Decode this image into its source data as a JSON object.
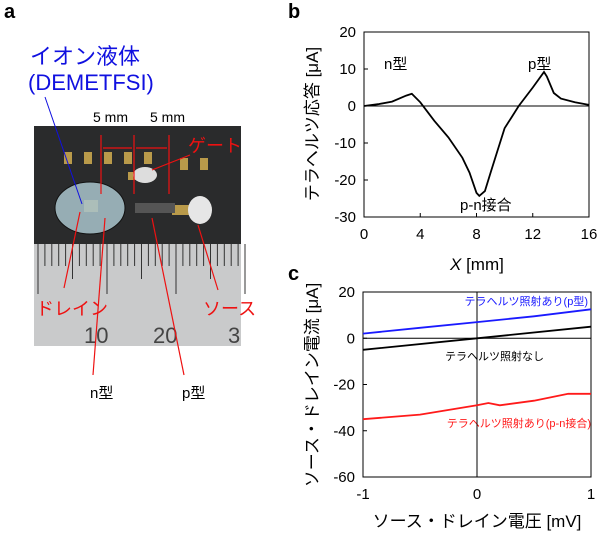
{
  "panels": {
    "a": "a",
    "b": "b",
    "c": "c"
  },
  "photo": {
    "ionic_liquid": "イオン液体",
    "ionic_liquid_name": "(DEMETFSI)",
    "dim1": "5 mm",
    "dim2": "5 mm",
    "gate": "ゲート",
    "drain": "ドレイン",
    "source": "ソース",
    "n_type": "n型",
    "p_type": "p型",
    "ruler_10": "10",
    "ruler_20": "20",
    "ruler_30": "3",
    "colors": {
      "blue": "#1010e0",
      "red": "#ee1111"
    }
  },
  "chart_data": [
    {
      "type": "line",
      "xlabel_italic": "X",
      "xlabel": "[mm]",
      "ylabel": "テラヘルツ応答 [μA]",
      "xlim": [
        0,
        16
      ],
      "ylim": [
        -30,
        20
      ],
      "xticks": [
        "0",
        "4",
        "8",
        "12",
        "16"
      ],
      "yticks": [
        "20",
        "10",
        "0",
        "-10",
        "-20",
        "-30"
      ],
      "annotations": [
        "n型",
        "p型",
        "p-n接合"
      ],
      "x": [
        0,
        1,
        2,
        3,
        3.4,
        4,
        4.5,
        5,
        6,
        7,
        7.5,
        8,
        8.2,
        8.6,
        9,
        9.5,
        10,
        10.5,
        11,
        12,
        12.8,
        13,
        13.5,
        14,
        15,
        16
      ],
      "y": [
        0,
        0.5,
        1.2,
        2.8,
        3.3,
        1,
        -1.5,
        -4,
        -8.5,
        -14,
        -18,
        -23.5,
        -24.3,
        -23,
        -18,
        -12,
        -6,
        -3,
        0,
        5,
        9.2,
        8,
        3.5,
        2,
        1,
        0.3
      ],
      "color": "#000000"
    },
    {
      "type": "line",
      "xlabel": "ソース・ドレイン電圧 [mV]",
      "ylabel": "ソース・ドレイン電流 [μA]",
      "xlim": [
        -1,
        1
      ],
      "ylim": [
        -60,
        20
      ],
      "xticks": [
        "-1",
        "0",
        "1"
      ],
      "yticks": [
        "20",
        "0",
        "-20",
        "-40",
        "-60"
      ],
      "series": [
        {
          "name": "テラヘルツ照射あり(p型)",
          "color": "#1a1aff",
          "x": [
            -1,
            -0.5,
            0,
            0.5,
            1
          ],
          "y": [
            2,
            4.5,
            7,
            9.5,
            12.5
          ]
        },
        {
          "name": "テラヘルツ照射なし",
          "color": "#000000",
          "x": [
            -1,
            0,
            1
          ],
          "y": [
            -5,
            0,
            5
          ]
        },
        {
          "name": "テラヘルツ照射あり(p-n接合)",
          "color": "#ff1a1a",
          "x": [
            -1,
            -0.5,
            0,
            0.1,
            0.2,
            0.5,
            0.8,
            1
          ],
          "y": [
            -35,
            -33,
            -29,
            -28,
            -29,
            -27,
            -24,
            -24
          ]
        }
      ]
    }
  ]
}
